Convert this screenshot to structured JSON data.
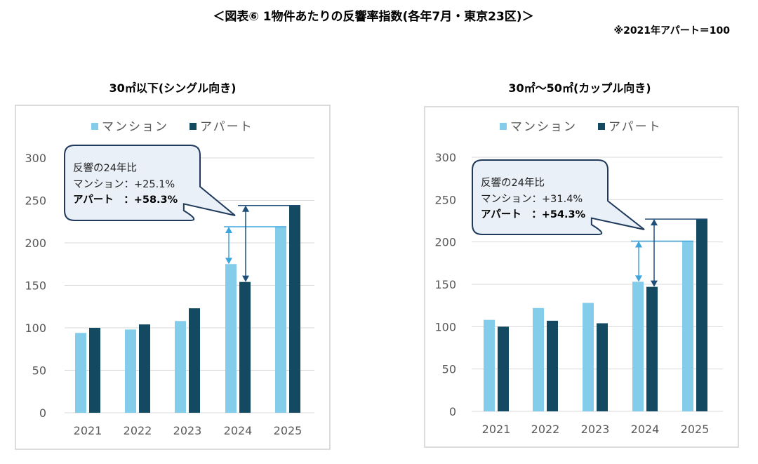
{
  "title": "＜図表⑥ 1物件あたりの反響率指数(各年7月・東京23区)＞",
  "note": "※2021年アパート＝100",
  "colors": {
    "mansion": "#83CCEA",
    "apart": "#134A62",
    "mansion_arrow": "#3DA5DC",
    "apart_arrow": "#1F4E79",
    "callout_fill": "#EAF0F8",
    "callout_border": "#1F3A5A"
  },
  "chart_data": [
    {
      "type": "bar",
      "title": "30㎡以下(シングル向き)",
      "categories": [
        "2021",
        "2022",
        "2023",
        "2024",
        "2025"
      ],
      "series": [
        {
          "name": "マンション",
          "values": [
            94,
            98,
            108,
            175,
            219
          ]
        },
        {
          "name": "アパート",
          "values": [
            100,
            104,
            123,
            154,
            244
          ]
        }
      ],
      "ylim": [
        0,
        300
      ],
      "yticks": [
        "0",
        "50",
        "100",
        "150",
        "200",
        "250",
        "300"
      ],
      "grid": true,
      "legend": "top",
      "callout": {
        "line1": "反響の24年比",
        "line2": "マンション：+25.1%",
        "line3": "アパート　：+58.3%"
      }
    },
    {
      "type": "bar",
      "title": "30㎡～50㎡(カップル向き)",
      "categories": [
        "2021",
        "2022",
        "2023",
        "2024",
        "2025"
      ],
      "series": [
        {
          "name": "マンション",
          "values": [
            108,
            122,
            128,
            153,
            201
          ]
        },
        {
          "name": "アパート",
          "values": [
            100,
            107,
            104,
            147,
            227
          ]
        }
      ],
      "ylim": [
        0,
        300
      ],
      "yticks": [
        "0",
        "50",
        "100",
        "150",
        "200",
        "250",
        "300"
      ],
      "grid": true,
      "legend": "top",
      "callout": {
        "line1": "反響の24年比",
        "line2": "マンション：+31.4%",
        "line3": "アパート　：+54.3%"
      }
    }
  ]
}
